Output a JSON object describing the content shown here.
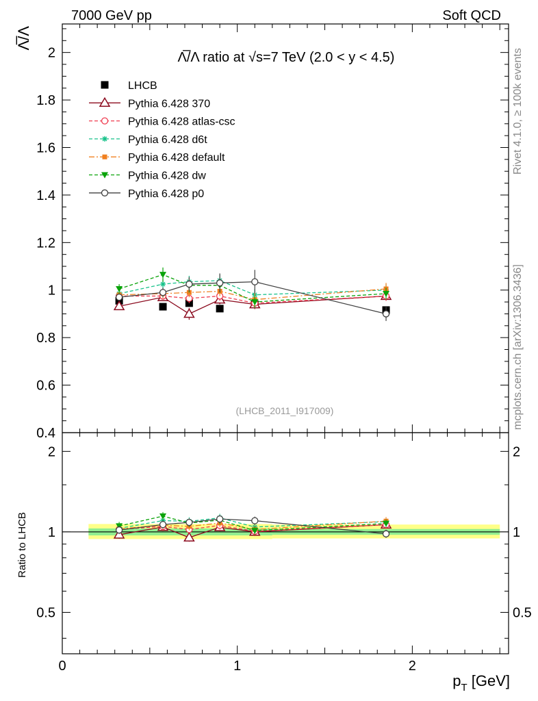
{
  "header": {
    "energy_label": "7000 GeV pp",
    "process_label": "Soft QCD",
    "side_rivet": "Rivet 4.1.0, ≥ 100k events",
    "side_source": "mcplots.cern.ch [arXiv:1306.3436]"
  },
  "colors": {
    "lhcb": "#000000",
    "p370": "#8b0a1e",
    "atlas_csc": "#ef3b4f",
    "d6t": "#17c28a",
    "default": "#f08020",
    "dw": "#0aa30a",
    "p0": "#404040",
    "band_inner": "#90ee90",
    "band_outer": "#ffff88"
  },
  "chart_data": [
    {
      "type": "line",
      "panel": "main",
      "title": "Λ̅/Λ ratio at √s=7 TeV (2.0 < y < 4.5)",
      "title_prefix": "Λ̅/Λ ratio at ",
      "title_sqrt": "√",
      "title_suffix": "s=7 TeV (2.0 < y < 4.5)",
      "ylabel": "Λ̅/Λ",
      "xlabel": "",
      "xlim": [
        0,
        2.55
      ],
      "ylim": [
        0.4,
        2.12
      ],
      "y_ticks": [
        0.4,
        0.6,
        0.8,
        1,
        1.2,
        1.4,
        1.6,
        1.8,
        2
      ],
      "y_tick_labels": [
        "0.4",
        "0.6",
        "0.8",
        "1",
        "1.2",
        "1.4",
        "1.6",
        "1.8",
        "2"
      ],
      "watermark": "(LHCB_2011_I917009)",
      "legend_position": "top-left",
      "x": [
        0.325,
        0.575,
        0.725,
        0.9,
        1.1,
        1.85
      ],
      "series": [
        {
          "name": "LHCB",
          "key": "lhcb",
          "values": [
            0.955,
            0.93,
            0.945,
            0.922,
            0.94,
            0.916
          ],
          "errors": [
            0.012,
            0.01,
            0.012,
            0.01,
            0.012,
            0.014
          ]
        },
        {
          "name": "Pythia 6.428 370",
          "key": "p370",
          "values": [
            0.932,
            0.97,
            0.9,
            0.96,
            0.94,
            0.975
          ],
          "errors": [
            0.015,
            0.015,
            0.025,
            0.02,
            0.02,
            0.02
          ]
        },
        {
          "name": "Pythia 6.428 atlas-csc",
          "key": "atlas_csc",
          "values": [
            0.975,
            0.975,
            0.965,
            0.975,
            0.945,
            0.975
          ],
          "errors": [
            0.015,
            0.015,
            0.02,
            0.02,
            0.02,
            0.02
          ]
        },
        {
          "name": "Pythia 6.428 d6t",
          "key": "d6t",
          "values": [
            0.985,
            1.025,
            1.035,
            1.04,
            0.98,
            1.0
          ],
          "errors": [
            0.015,
            0.02,
            0.025,
            0.025,
            0.025,
            0.025
          ]
        },
        {
          "name": "Pythia 6.428 default",
          "key": "default",
          "values": [
            0.98,
            0.985,
            0.99,
            0.995,
            0.96,
            1.005
          ],
          "errors": [
            0.015,
            0.02,
            0.02,
            0.02,
            0.03,
            0.025
          ]
        },
        {
          "name": "Pythia 6.428 dw",
          "key": "dw",
          "values": [
            1.005,
            1.065,
            1.02,
            1.02,
            0.95,
            0.985
          ],
          "errors": [
            0.02,
            0.03,
            0.03,
            0.03,
            0.025,
            0.025
          ]
        },
        {
          "name": "Pythia 6.428 p0",
          "key": "p0",
          "values": [
            0.97,
            0.99,
            1.025,
            1.03,
            1.035,
            0.9
          ],
          "errors": [
            0.015,
            0.02,
            0.03,
            0.04,
            0.05,
            0.03
          ]
        }
      ]
    },
    {
      "type": "line",
      "panel": "ratio",
      "title": "",
      "ylabel": "Ratio to LHCB",
      "xlabel": "p_T [GeV]",
      "xlabel_main": "p",
      "xlabel_sub": "T",
      "xlabel_unit": " [GeV]",
      "xlim": [
        0,
        2.55
      ],
      "ylim": [
        0.35,
        2.35
      ],
      "y_ticks": [
        0.5,
        1,
        2
      ],
      "y_tick_labels": [
        "0.5",
        "1",
        "2"
      ],
      "x_ticks": [
        0,
        1,
        2
      ],
      "x_tick_labels": [
        "0",
        "1",
        "2"
      ],
      "band_xrange": [
        0.15,
        2.5
      ],
      "band_inner": [
        {
          "x0": 0.15,
          "x1": 1.2,
          "lo": 0.97,
          "hi": 1.03
        },
        {
          "x0": 1.2,
          "x1": 2.5,
          "lo": 0.975,
          "hi": 1.025
        }
      ],
      "band_outer": [
        {
          "x0": 0.15,
          "x1": 1.2,
          "lo": 0.94,
          "hi": 1.07
        },
        {
          "x0": 1.2,
          "x1": 2.5,
          "lo": 0.945,
          "hi": 1.065
        }
      ],
      "x": [
        0.325,
        0.575,
        0.725,
        0.9,
        1.1,
        1.85
      ],
      "series": [
        {
          "name": "Pythia 6.428 370",
          "key": "p370",
          "values": [
            0.976,
            1.043,
            0.952,
            1.041,
            1.0,
            1.064
          ]
        },
        {
          "name": "Pythia 6.428 atlas-csc",
          "key": "atlas_csc",
          "values": [
            1.021,
            1.048,
            1.021,
            1.057,
            1.005,
            1.064
          ]
        },
        {
          "name": "Pythia 6.428 d6t",
          "key": "d6t",
          "values": [
            1.031,
            1.102,
            1.095,
            1.128,
            1.043,
            1.092
          ]
        },
        {
          "name": "Pythia 6.428 default",
          "key": "default",
          "values": [
            1.026,
            1.059,
            1.048,
            1.079,
            1.021,
            1.097
          ]
        },
        {
          "name": "Pythia 6.428 dw",
          "key": "dw",
          "values": [
            1.052,
            1.145,
            1.079,
            1.106,
            1.011,
            1.075
          ]
        },
        {
          "name": "Pythia 6.428 p0",
          "key": "p0",
          "values": [
            1.016,
            1.065,
            1.085,
            1.117,
            1.101,
            0.983
          ]
        }
      ]
    }
  ]
}
